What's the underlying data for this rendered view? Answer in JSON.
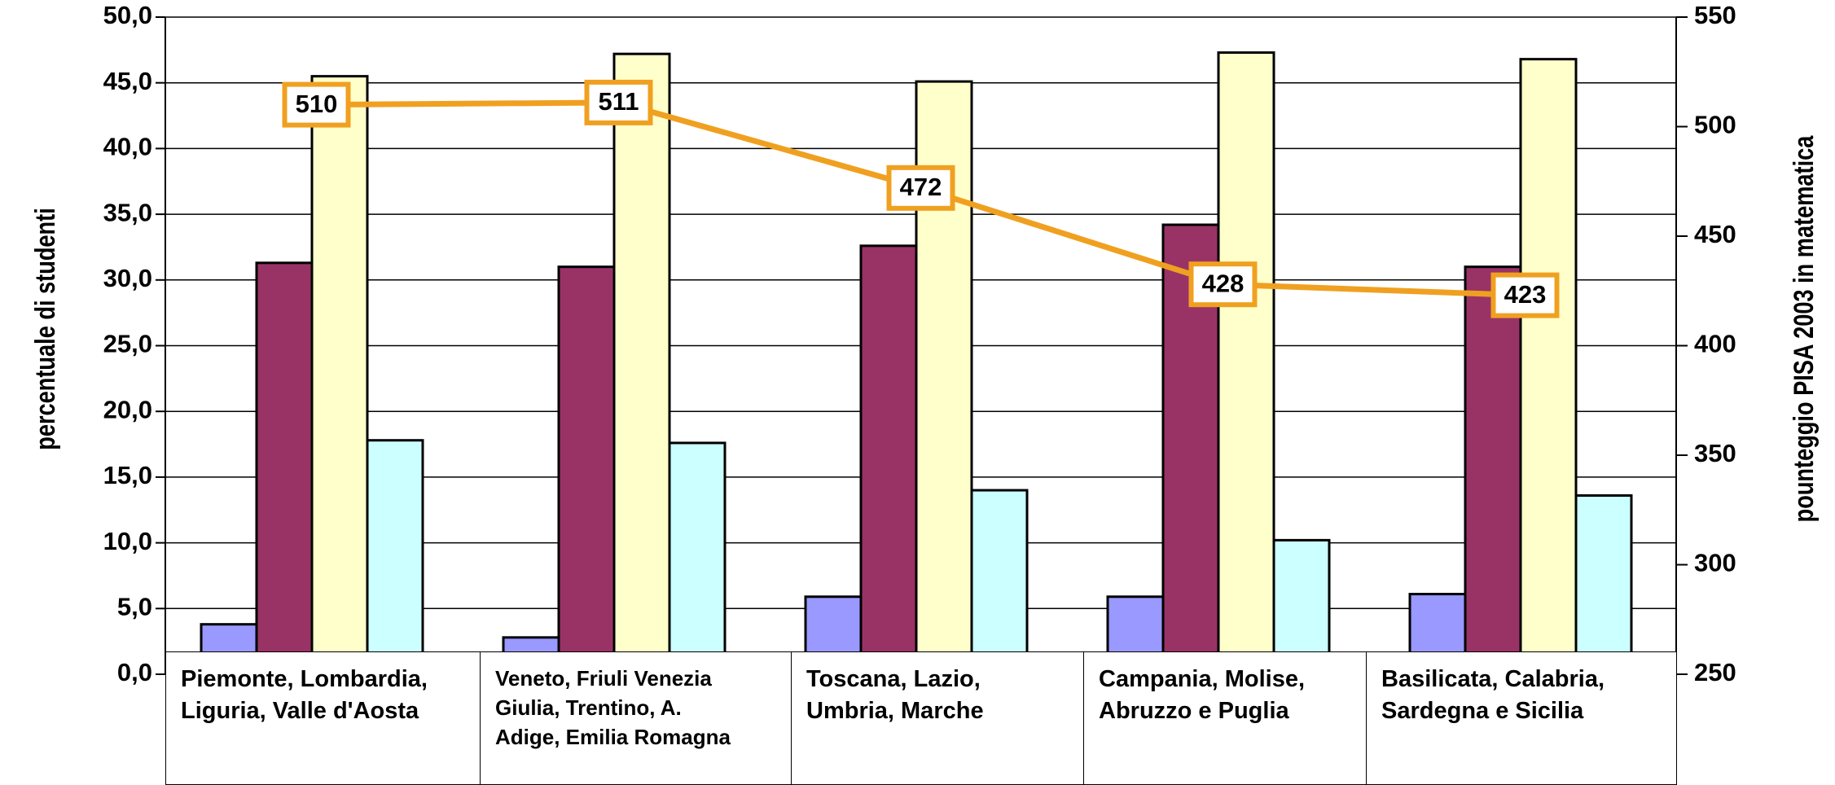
{
  "chart_data": {
    "type": "bar",
    "categories": [
      "Piemonte, Lombardia, Liguria, Valle d'Aosta",
      "Veneto, Friuli Venezia Giulia, Trentino, A. Adige, Emilia Romagna",
      "Toscana, Lazio, Umbria, Marche",
      "Campania, Molise, Abruzzo e Puglia",
      "Basilicata, Calabria, Sardegna e Sicilia"
    ],
    "series": [
      {
        "color": "#9999ff",
        "values": [
          3.8,
          2.8,
          5.9,
          5.9,
          6.1
        ]
      },
      {
        "color": "#993366",
        "values": [
          31.3,
          31.0,
          32.6,
          34.2,
          31.0
        ]
      },
      {
        "color": "#ffffcc",
        "values": [
          45.5,
          47.2,
          45.1,
          47.3,
          46.8
        ]
      },
      {
        "color": "#ccffff",
        "values": [
          17.8,
          17.6,
          14.0,
          10.2,
          13.6
        ]
      }
    ],
    "line": {
      "color": "#f0a020",
      "values": [
        510,
        511,
        472,
        428,
        423
      ],
      "axis": "right"
    },
    "xlabel": "",
    "ylabel": "percentuale di studenti",
    "y2label": "pounteggio PISA 2003 in matematica",
    "ylim": [
      0,
      50
    ],
    "y2lim": [
      250,
      550
    ],
    "yticks": [
      "0,0",
      "5,0",
      "10,0",
      "15,0",
      "20,0",
      "25,0",
      "30,0",
      "35,0",
      "40,0",
      "45,0",
      "50,0"
    ],
    "y2ticks": [
      "250",
      "300",
      "350",
      "400",
      "450",
      "500",
      "550"
    ],
    "grid": true,
    "category_label_lines": [
      [
        "Piemonte, Lombardia,",
        "Liguria, Valle d'Aosta"
      ],
      [
        "Veneto, Friuli Venezia",
        "Giulia, Trentino, A.",
        "Adige, Emilia Romagna"
      ],
      [
        "Toscana, Lazio,",
        "Umbria, Marche"
      ],
      [
        "Campania, Molise,",
        "Abruzzo e Puglia"
      ],
      [
        "Basilicata, Calabria,",
        "Sardegna e Sicilia"
      ]
    ]
  }
}
